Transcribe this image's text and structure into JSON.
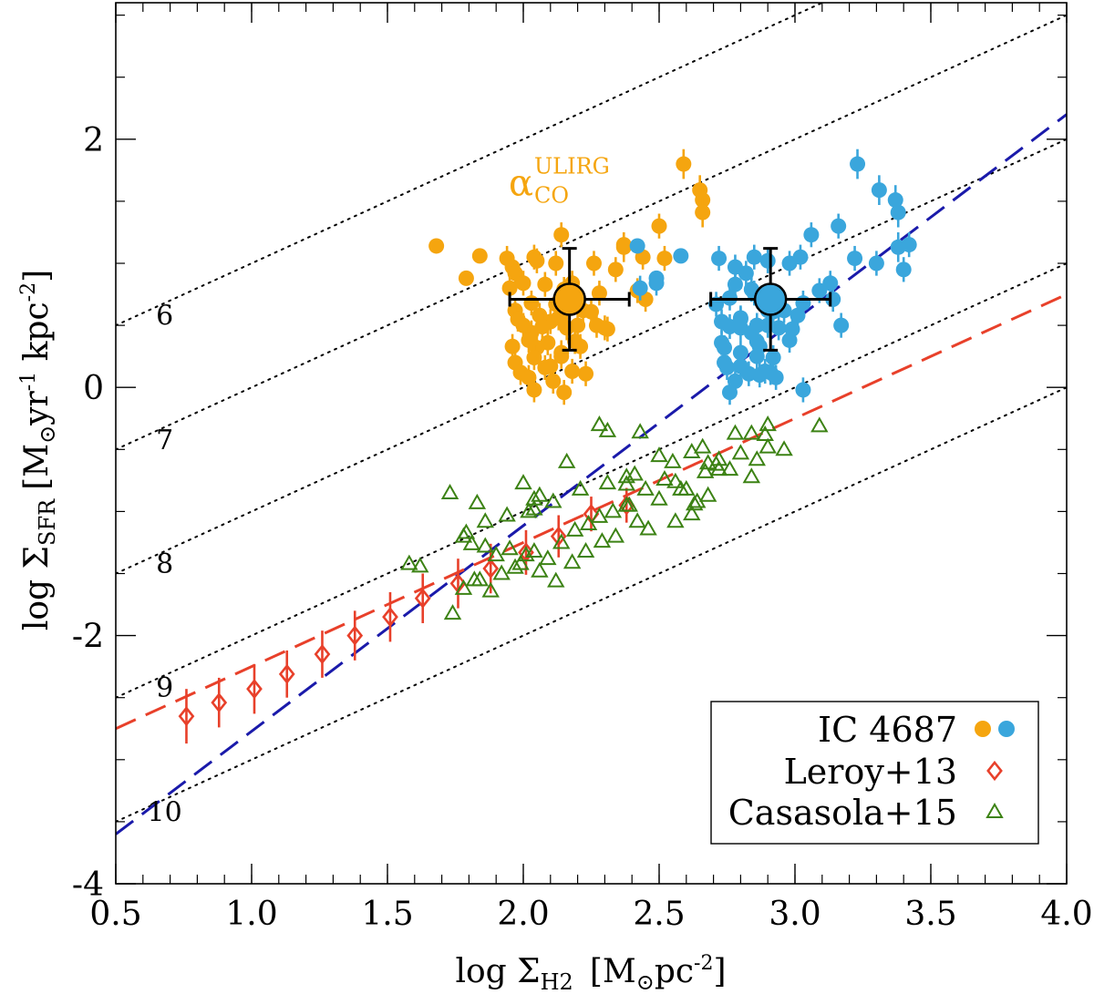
{
  "chart_data": {
    "type": "scatter",
    "title": "",
    "xlabel": "log Σ_H2  [M_⊙pc^-2]",
    "ylabel": "log Σ_SFR [M_⊙ yr^-1 kpc^-2]",
    "xlabel_parts": {
      "pre": "log Σ",
      "sub": "H2",
      "bracket_open": "[M",
      "sun": "⊙",
      "unit": "pc",
      "sup": "-2",
      "bracket_close": "]"
    },
    "ylabel_parts": {
      "pre": "log Σ",
      "sub": "SFR",
      "bracket_open": "[M",
      "sun": "⊙",
      "unit1": "yr",
      "sup1": "-1",
      "unit2": " kpc",
      "sup2": "-2",
      "bracket_close": "]"
    },
    "xlim": [
      0.5,
      4.0
    ],
    "ylim": [
      -4.0,
      3.1
    ],
    "xticks": [
      0.5,
      1.0,
      1.5,
      2.0,
      2.5,
      3.0,
      3.5,
      4.0
    ],
    "xtick_labels": [
      "0.5",
      "1.0",
      "1.5",
      "2.0",
      "2.5",
      "3.0",
      "3.5",
      "4.0"
    ],
    "yticks": [
      -4,
      -2,
      0,
      2
    ],
    "ytick_labels": [
      "-4",
      "-2",
      "0",
      "2"
    ],
    "depletion_lines": {
      "labels": [
        "6",
        "7",
        "8",
        "9",
        "10"
      ],
      "tdep_log_yr": [
        6,
        7,
        8,
        9,
        10
      ],
      "label_x": 0.68,
      "color": "#000000"
    },
    "fits": [
      {
        "name": "blue dashed fit",
        "color": "#1a1aaa",
        "x": [
          0.5,
          4.0
        ],
        "y": [
          -3.6,
          2.2
        ]
      },
      {
        "name": "red dashed fit",
        "color": "#e8402a",
        "x": [
          0.5,
          4.0
        ],
        "y": [
          -2.75,
          0.75
        ]
      }
    ],
    "annotation": {
      "symbol": "α",
      "sub": "CO",
      "sup": "ULIRG",
      "x": 2.02,
      "y": 1.65,
      "color": "#f5a50f"
    },
    "series": [
      {
        "name": "IC 4687 (α_CO ULIRG)",
        "color": "#f5a50f",
        "marker": "filled-circle",
        "x": [
          1.68,
          1.79,
          1.84,
          1.94,
          1.96,
          1.97,
          2.04,
          2.05,
          2.12,
          2.14,
          2.18,
          2.26,
          2.34,
          2.37,
          1.95,
          2.0,
          2.08,
          2.15,
          2.22,
          1.97,
          2.03,
          2.12,
          2.17,
          2.28,
          2.0,
          2.06,
          2.1,
          1.98,
          2.03,
          2.07,
          2.13,
          2.2,
          2.25,
          2.02,
          2.09,
          2.16,
          1.96,
          2.05,
          2.14,
          2.19,
          2.04,
          1.97,
          2.1,
          2.21,
          1.99,
          2.08,
          2.23,
          2.02,
          2.11,
          2.14,
          2.18,
          2.3,
          2.44,
          2.5,
          2.52,
          2.59,
          2.65,
          2.66,
          2.66,
          2.37,
          2.42,
          2.45,
          2.27,
          2.31,
          2.04,
          2.15
        ],
        "y": [
          1.14,
          0.88,
          1.06,
          1.04,
          0.97,
          0.92,
          1.05,
          1.02,
          1.0,
          1.23,
          0.84,
          1.0,
          0.95,
          1.15,
          0.8,
          0.84,
          0.83,
          0.79,
          0.62,
          0.62,
          0.68,
          0.67,
          0.72,
          0.76,
          0.5,
          0.58,
          0.53,
          0.55,
          0.44,
          0.49,
          0.56,
          0.5,
          0.61,
          0.38,
          0.36,
          0.48,
          0.33,
          0.32,
          0.28,
          0.37,
          0.24,
          0.2,
          0.17,
          0.33,
          0.12,
          0.16,
          0.11,
          0.08,
          0.05,
          0.25,
          0.13,
          0.48,
          1.05,
          1.3,
          1.04,
          1.8,
          1.59,
          1.51,
          1.41,
          1.13,
          0.78,
          0.71,
          0.5,
          0.47,
          -0.02,
          -0.04
        ],
        "yerr": [
          0,
          0,
          0,
          0.1,
          0.1,
          0.1,
          0.1,
          0.1,
          0.1,
          0.1,
          0.1,
          0.1,
          0.1,
          0.1,
          0.1,
          0.1,
          0.1,
          0.1,
          0.1,
          0.1,
          0.1,
          0.1,
          0.1,
          0.1,
          0.1,
          0.1,
          0.1,
          0.1,
          0.1,
          0.1,
          0.1,
          0.1,
          0.1,
          0.1,
          0.1,
          0.1,
          0.1,
          0.1,
          0.1,
          0.1,
          0.1,
          0.1,
          0.1,
          0.1,
          0.1,
          0.1,
          0.1,
          0.1,
          0.1,
          0.1,
          0.1,
          0.1,
          0.1,
          0.1,
          0.1,
          0.12,
          0.12,
          0.12,
          0.12,
          0.12,
          0.1,
          0.1,
          0.1,
          0.1,
          0.1,
          0.1
        ]
      },
      {
        "name": "IC 4687 (Galactic α_CO)",
        "color": "#3aa6dc",
        "marker": "filled-circle",
        "x": [
          2.42,
          2.49,
          2.58,
          2.72,
          2.78,
          2.82,
          2.85,
          2.9,
          2.98,
          3.06,
          3.13,
          3.3,
          3.4,
          3.42,
          2.43,
          2.49,
          2.78,
          2.84,
          2.9,
          2.96,
          3.03,
          2.71,
          2.76,
          2.85,
          2.9,
          3.01,
          2.73,
          2.8,
          2.84,
          2.76,
          2.8,
          2.86,
          2.92,
          2.98,
          2.73,
          2.8,
          2.87,
          2.74,
          2.8,
          2.86,
          2.92,
          2.74,
          2.8,
          2.87,
          2.91,
          2.75,
          2.83,
          2.93,
          2.78,
          2.86,
          2.89,
          2.94,
          3.02,
          3.16,
          3.22,
          3.23,
          3.31,
          3.37,
          3.38,
          3.38,
          3.09,
          3.14,
          3.17,
          2.99,
          3.03,
          2.76,
          2.87
        ],
        "y": [
          1.14,
          0.88,
          1.06,
          1.04,
          0.97,
          0.92,
          1.05,
          1.02,
          1.0,
          1.23,
          0.84,
          1.0,
          0.95,
          1.15,
          0.8,
          0.84,
          0.83,
          0.79,
          0.62,
          0.62,
          0.68,
          0.67,
          0.72,
          0.76,
          0.5,
          0.58,
          0.53,
          0.55,
          0.44,
          0.49,
          0.56,
          0.5,
          0.61,
          0.38,
          0.36,
          0.48,
          0.33,
          0.32,
          0.28,
          0.37,
          0.24,
          0.2,
          0.17,
          0.33,
          0.12,
          0.16,
          0.11,
          0.08,
          0.05,
          0.25,
          0.13,
          0.48,
          1.05,
          1.3,
          1.04,
          1.8,
          1.59,
          1.51,
          1.41,
          1.13,
          0.78,
          0.71,
          0.5,
          0.47,
          -0.02,
          -0.04,
          0.1
        ],
        "yerr": [
          0,
          0,
          0,
          0.1,
          0.1,
          0.1,
          0.1,
          0.1,
          0.1,
          0.1,
          0.1,
          0.1,
          0.1,
          0.1,
          0.1,
          0.1,
          0.1,
          0.1,
          0.1,
          0.1,
          0.1,
          0.1,
          0.1,
          0.1,
          0.1,
          0.1,
          0.1,
          0.1,
          0.1,
          0.1,
          0.1,
          0.1,
          0.1,
          0.1,
          0.1,
          0.1,
          0.1,
          0.1,
          0.1,
          0.1,
          0.1,
          0.1,
          0.1,
          0.1,
          0.1,
          0.1,
          0.1,
          0.1,
          0.1,
          0.1,
          0.1,
          0.1,
          0.1,
          0.1,
          0.1,
          0.12,
          0.12,
          0.12,
          0.12,
          0.12,
          0.1,
          0.1,
          0.1,
          0.1,
          0.1,
          0.1,
          0.1
        ]
      },
      {
        "name": "IC 4687 mean (α_CO ULIRG)",
        "color": "#f5a50f",
        "marker": "big-circle",
        "x": [
          2.17
        ],
        "y": [
          0.71
        ],
        "xerr": [
          0.22
        ],
        "yerr": [
          0.41
        ]
      },
      {
        "name": "IC 4687 mean (Galactic α_CO)",
        "color": "#3aa6dc",
        "marker": "big-circle",
        "x": [
          2.91
        ],
        "y": [
          0.71
        ],
        "xerr": [
          0.22
        ],
        "yerr": [
          0.41
        ]
      },
      {
        "name": "Leroy+13",
        "color": "#e8402a",
        "marker": "open-diamond",
        "x": [
          0.76,
          0.88,
          1.01,
          1.13,
          1.26,
          1.38,
          1.51,
          1.63,
          1.76,
          1.88,
          2.01,
          2.13,
          2.25,
          2.38
        ],
        "y": [
          -2.65,
          -2.54,
          -2.43,
          -2.31,
          -2.15,
          -2.0,
          -1.85,
          -1.7,
          -1.58,
          -1.46,
          -1.33,
          -1.2,
          -1.02,
          -0.95
        ],
        "yerr": [
          0.22,
          0.2,
          0.2,
          0.19,
          0.19,
          0.2,
          0.2,
          0.2,
          0.2,
          0.2,
          0.18,
          0.17,
          0.14,
          0.14
        ]
      },
      {
        "name": "Casasola+15",
        "color": "#3c8214",
        "marker": "open-triangle",
        "x": [
          2.28,
          2.31,
          2.43,
          2.16,
          1.73,
          1.83,
          2.0,
          2.06,
          2.02,
          2.04,
          2.21,
          2.31,
          2.38,
          2.5,
          2.55,
          2.62,
          2.66,
          2.72,
          2.78,
          2.84,
          2.9,
          2.96,
          3.09,
          1.58,
          1.62,
          1.78,
          1.81,
          1.86,
          1.9,
          1.95,
          1.99,
          2.04,
          2.09,
          2.14,
          2.19,
          2.24,
          2.28,
          2.33,
          2.38,
          2.42,
          2.46,
          2.52,
          2.58,
          2.63,
          2.67,
          2.71,
          2.76,
          2.8,
          2.86,
          2.9,
          1.74,
          1.78,
          1.84,
          1.88,
          1.92,
          1.97,
          2.01,
          2.06,
          2.12,
          2.18,
          2.23,
          2.29,
          2.34,
          2.39,
          2.45,
          2.5,
          2.56,
          2.6,
          2.64,
          2.68,
          2.72,
          2.84,
          1.79,
          1.86,
          1.94,
          2.04,
          2.11,
          2.41,
          2.38,
          2.56,
          2.62,
          1.82,
          2.68,
          2.89
        ],
        "y": [
          -0.3,
          -0.35,
          -0.36,
          -0.6,
          -0.85,
          -0.93,
          -0.77,
          -0.87,
          -1.0,
          -0.9,
          -0.82,
          -0.77,
          -0.72,
          -0.55,
          -0.6,
          -0.52,
          -0.48,
          -0.58,
          -0.37,
          -0.37,
          -0.3,
          -0.5,
          -0.31,
          -1.42,
          -1.44,
          -1.2,
          -1.26,
          -1.28,
          -1.35,
          -1.3,
          -1.42,
          -1.32,
          -1.38,
          -1.25,
          -1.15,
          -1.1,
          -1.04,
          -1.0,
          -0.95,
          -1.08,
          -1.14,
          -0.74,
          -0.82,
          -0.94,
          -0.68,
          -0.62,
          -0.66,
          -0.53,
          -0.58,
          -0.48,
          -1.82,
          -1.62,
          -1.55,
          -1.64,
          -1.5,
          -1.45,
          -1.35,
          -1.48,
          -1.56,
          -1.41,
          -1.32,
          -1.24,
          -1.2,
          -0.95,
          -0.82,
          -0.9,
          -0.76,
          -0.82,
          -0.92,
          -0.87,
          -0.66,
          -0.72,
          -1.17,
          -1.08,
          -1.03,
          -0.98,
          -0.92,
          -0.7,
          -0.78,
          -1.08,
          -1.02,
          -1.55,
          -0.61,
          -0.38
        ]
      }
    ],
    "legend": {
      "position": "bottom-right",
      "entries": [
        {
          "label": "IC 4687",
          "symbols": [
            "filled-circle:#f5a50f",
            "filled-circle:#3aa6dc"
          ]
        },
        {
          "label": "Leroy+13",
          "symbols": [
            "open-diamond:#e8402a"
          ]
        },
        {
          "label": "Casasola+15",
          "symbols": [
            "open-triangle:#3c8214"
          ]
        }
      ]
    }
  }
}
